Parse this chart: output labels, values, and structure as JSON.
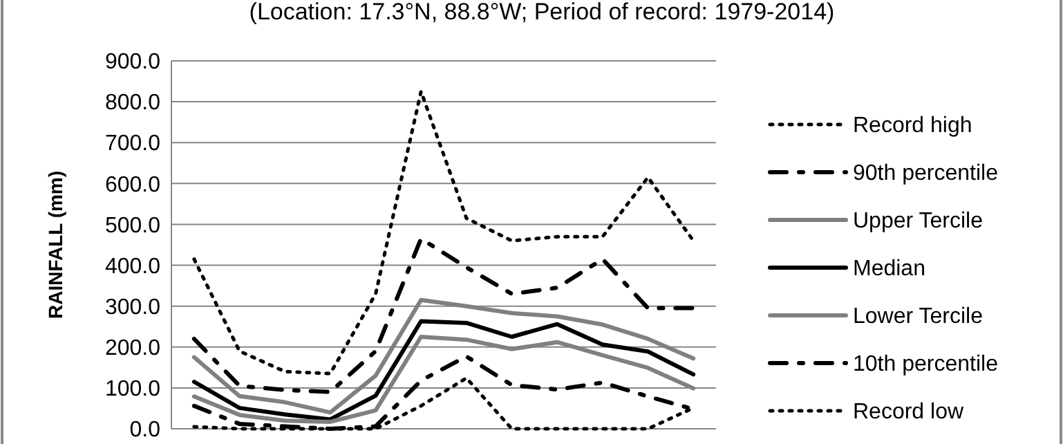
{
  "chart_data": {
    "type": "line",
    "title": "(Location: 17.3°N, 88.8°W; Period of record: 1979-2014)",
    "ylabel": "RAINFALL (mm)",
    "categories": [
      null,
      null,
      null,
      null,
      null,
      null,
      null,
      null,
      null,
      null,
      null,
      null
    ],
    "ylim": [
      0,
      900
    ],
    "yticks": [
      {
        "value": 0,
        "label": "0.0"
      },
      {
        "value": 100,
        "label": "100.0"
      },
      {
        "value": 200,
        "label": "200.0"
      },
      {
        "value": 300,
        "label": "300.0"
      },
      {
        "value": 400,
        "label": "400.0"
      },
      {
        "value": 500,
        "label": "500.0"
      },
      {
        "value": 600,
        "label": "600.0"
      },
      {
        "value": 700,
        "label": "700.0"
      },
      {
        "value": 800,
        "label": "800.0"
      },
      {
        "value": 900,
        "label": "900.0"
      }
    ],
    "grid": "y",
    "legend": "right",
    "tick_labels": "y",
    "series": [
      {
        "name": "Record high",
        "color": "#000000",
        "line_style": "dotted",
        "values": [
          415,
          190,
          140,
          135,
          330,
          825,
          515,
          460,
          470,
          470,
          615,
          460
        ]
      },
      {
        "name": "90th percentile",
        "color": "#000000",
        "line_style": "dashed",
        "values": [
          220,
          105,
          95,
          90,
          190,
          465,
          395,
          330,
          345,
          415,
          295,
          295
        ]
      },
      {
        "name": "Upper Tercile",
        "color": "#808080",
        "line_style": "solid",
        "values": [
          175,
          80,
          65,
          40,
          130,
          315,
          300,
          283,
          275,
          255,
          220,
          172
        ]
      },
      {
        "name": "Median",
        "color": "#000000",
        "line_style": "solid",
        "values": [
          115,
          51,
          35,
          23,
          81,
          263,
          259,
          225,
          256,
          206,
          189,
          133
        ]
      },
      {
        "name": "Lower Tercile",
        "color": "#808080",
        "line_style": "solid",
        "values": [
          79,
          34,
          20,
          17,
          45,
          225,
          218,
          195,
          212,
          180,
          149,
          99
        ]
      },
      {
        "name": "10th percentile",
        "color": "#000000",
        "line_style": "dashed",
        "values": [
          56,
          12,
          6,
          0,
          6,
          118,
          177,
          107,
          96,
          113,
          79,
          48
        ]
      },
      {
        "name": "Record low",
        "color": "#000000",
        "line_style": "dotted",
        "values": [
          5,
          0,
          0,
          0,
          0,
          56,
          124,
          0,
          0,
          0,
          0,
          51
        ]
      }
    ]
  }
}
